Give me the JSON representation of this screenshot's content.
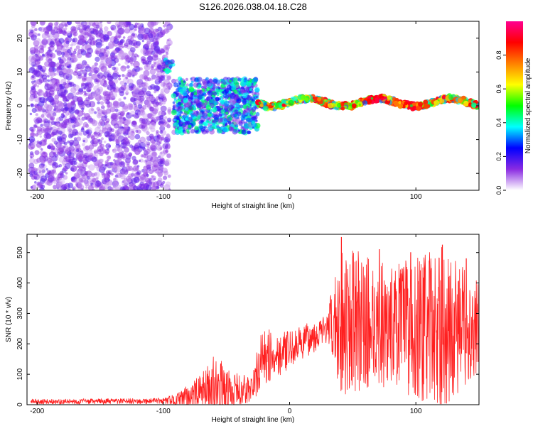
{
  "title": "S126.2026.038.04.18.C28",
  "chart_data": [
    {
      "type": "heatmap",
      "title": "S126.2026.038.04.18.C28",
      "xlabel": "Height of straight line (km)",
      "ylabel": "Frequency (Hz)",
      "xlim": [
        -208,
        150
      ],
      "ylim": [
        -25,
        25
      ],
      "xticks": [
        -200,
        -100,
        0,
        100
      ],
      "yticks": [
        -20,
        -10,
        0,
        10,
        20
      ],
      "colorbar": {
        "label": "Normalized spectral amplitude",
        "range": [
          0,
          1
        ],
        "ticks": [
          0.0,
          0.2,
          0.4,
          0.6,
          0.8
        ],
        "colors": [
          "#ffffff",
          "#8a2be2",
          "#0000ff",
          "#00ffff",
          "#00ff00",
          "#ffff00",
          "#ff8000",
          "#ff0000",
          "#ff0090"
        ]
      },
      "regions": [
        {
          "name": "noise",
          "x": [
            -205,
            -95
          ],
          "freq": [
            -25,
            25
          ],
          "amplitude": 0.15
        },
        {
          "name": "burst",
          "x": [
            -100,
            -92
          ],
          "freq": [
            10,
            14
          ],
          "amplitude": 0.4
        },
        {
          "name": "onset",
          "x": [
            -92,
            -25
          ],
          "freq": [
            -8,
            8
          ],
          "amplitude": 0.35
        },
        {
          "name": "line",
          "x": [
            -25,
            150
          ],
          "freq": [
            -1,
            3
          ],
          "amplitude": 0.8
        }
      ]
    },
    {
      "type": "line",
      "xlabel": "Height of straight line (km)",
      "ylabel": "SNR (10 * v/v)",
      "xlim": [
        -208,
        150
      ],
      "ylim": [
        0,
        560
      ],
      "xticks": [
        -200,
        -100,
        0,
        100
      ],
      "yticks": [
        0,
        100,
        200,
        300,
        400,
        500
      ],
      "color": "#ff2020",
      "envelope": [
        {
          "x": -205,
          "baseline": 10,
          "spread": 8
        },
        {
          "x": -100,
          "baseline": 12,
          "spread": 10
        },
        {
          "x": -88,
          "baseline": 15,
          "spread": 25
        },
        {
          "x": -70,
          "baseline": 40,
          "spread": 60
        },
        {
          "x": -60,
          "baseline": 60,
          "spread": 110
        },
        {
          "x": -45,
          "baseline": 45,
          "spread": 60
        },
        {
          "x": -30,
          "baseline": 50,
          "spread": 50
        },
        {
          "x": -22,
          "baseline": 150,
          "spread": 100
        },
        {
          "x": 0,
          "baseline": 180,
          "spread": 60
        },
        {
          "x": 30,
          "baseline": 250,
          "spread": 50
        },
        {
          "x": 40,
          "baseline": 280,
          "spread": 250
        },
        {
          "x": 80,
          "baseline": 260,
          "spread": 200
        },
        {
          "x": 120,
          "baseline": 250,
          "spread": 270
        },
        {
          "x": 150,
          "baseline": 260,
          "spread": 150
        }
      ],
      "peaks": [
        {
          "x": 41,
          "y": 550
        },
        {
          "x": 71,
          "y": 510
        },
        {
          "x": 96,
          "y": 500
        },
        {
          "x": 121,
          "y": 525
        },
        {
          "x": 140,
          "y": 480
        }
      ]
    }
  ]
}
